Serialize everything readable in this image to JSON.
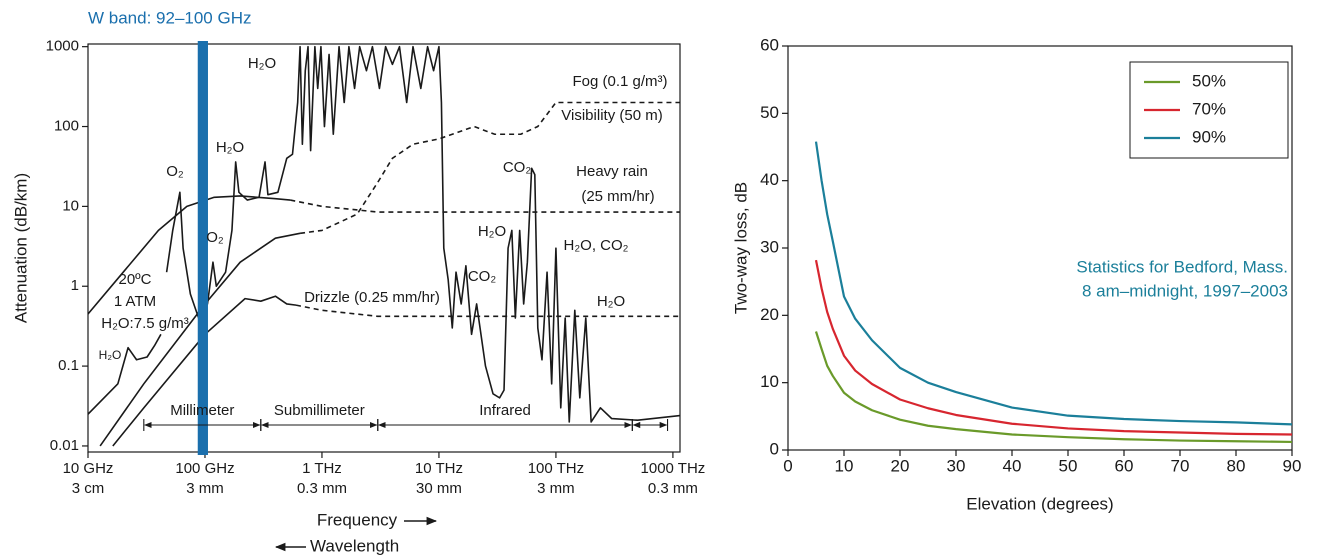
{
  "chart_data": [
    {
      "type": "line",
      "title": "W band: 92–100 GHz",
      "y_label": "Attenuation (dB/km)",
      "x_label": "Frequency",
      "x2_label": "Wavelength",
      "log_x": true,
      "log_y": true,
      "xlim": [
        10,
        1150000
      ],
      "ylim": [
        0.0084,
        1080
      ],
      "xticks": [
        {
          "value": 10,
          "label": "10 GHz"
        },
        {
          "value": 100,
          "label": "100 GHz"
        },
        {
          "value": 1000,
          "label": "1 THz"
        },
        {
          "value": 10000,
          "label": "10 THz"
        },
        {
          "value": 100000,
          "label": "100 THz"
        },
        {
          "value": 1000000,
          "label": "1000 THz"
        }
      ],
      "xtick_wavelengths": [
        "3 cm",
        "3 mm",
        "0.3 mm",
        "30 mm",
        "3 mm",
        "0.3 mm"
      ],
      "yticks": [
        0.01,
        0.1,
        1,
        10,
        100,
        1000
      ],
      "w_band": {
        "range": [
          92,
          100
        ],
        "color": "#1a6fad"
      },
      "regions": [
        {
          "label": "Millimeter",
          "range": [
            30,
            300
          ]
        },
        {
          "label": "Submillimeter",
          "range": [
            300,
            3000
          ]
        },
        {
          "label": "Infrared",
          "range": [
            3000,
            450000
          ]
        },
        {
          "range": [
            450000,
            900000
          ]
        }
      ],
      "series": [
        {
          "color": "#1a1a1a",
          "dash": false,
          "x": [
            10,
            18,
            22,
            26,
            32,
            37,
            42,
            null,
            47,
            53,
            61,
            65,
            75,
            91,
            105,
            117,
            125,
            150,
            170,
            183,
            195,
            230,
            290,
            326,
            345,
            420,
            500,
            560,
            620,
            650,
            680,
            720,
            760,
            800,
            870,
            920,
            980,
            1050,
            1150,
            1250,
            1400,
            1550,
            1700,
            1900,
            2100,
            2400,
            2700,
            3100,
            3500,
            4000,
            4600,
            5300,
            6000,
            7000,
            8000,
            9000,
            10000,
            10500,
            11000,
            12000,
            13000,
            14000,
            15500,
            17000,
            19000,
            21000,
            25000,
            29000,
            33000,
            36000,
            39000,
            42000,
            45000,
            49000,
            53000,
            57000,
            62000,
            66000,
            70000,
            76000,
            84000,
            92000,
            100000,
            110000,
            120000,
            130000,
            145000,
            160000,
            180000,
            200000,
            240000,
            300000,
            500000,
            1150000
          ],
          "values": [
            0.025,
            0.06,
            0.17,
            0.12,
            0.13,
            0.18,
            0.25,
            null,
            1.5,
            5,
            15,
            3,
            0.8,
            0.35,
            0.6,
            2,
            1,
            1.5,
            5,
            36,
            15,
            12,
            13,
            36,
            14,
            15,
            40,
            45,
            200,
            1000,
            60,
            500,
            1000,
            50,
            1000,
            300,
            1000,
            100,
            800,
            80,
            1000,
            200,
            1000,
            300,
            1000,
            500,
            1000,
            300,
            1000,
            600,
            1000,
            200,
            1000,
            300,
            1000,
            500,
            1000,
            200,
            3,
            1.2,
            0.3,
            1.5,
            0.6,
            1.8,
            0.25,
            0.6,
            0.1,
            0.045,
            0.04,
            0.05,
            3,
            5,
            0.4,
            5,
            0.6,
            2,
            30,
            25,
            0.3,
            0.12,
            1.5,
            0.06,
            3,
            0.03,
            0.4,
            0.02,
            0.5,
            0.04,
            0.4,
            0.02,
            0.03,
            0.022,
            0.021,
            0.024
          ]
        },
        {
          "color": "#1a1a1a",
          "dash": false,
          "x": [
            10,
            20,
            40,
            70,
            120,
            200,
            400,
            536
          ],
          "values": [
            0.45,
            1.5,
            5,
            10,
            13,
            13.5,
            12.5,
            12
          ]
        },
        {
          "color": "#1a1a1a",
          "dash": true,
          "x": [
            536,
            1000,
            3000,
            1150000
          ],
          "values": [
            12,
            10,
            8.5,
            8.5
          ]
        },
        {
          "color": "#1a1a1a",
          "dash": false,
          "x": [
            12.7,
            30,
            100,
            200,
            400,
            650
          ],
          "values": [
            0.01,
            0.06,
            0.6,
            2,
            4,
            4.6
          ]
        },
        {
          "color": "#1a1a1a",
          "dash": true,
          "x": [
            650,
            1000,
            2000,
            3000,
            4000,
            6000,
            10000,
            20000,
            30000,
            50000,
            70000,
            100000,
            1150000
          ],
          "values": [
            4.6,
            5,
            8,
            20,
            40,
            60,
            70,
            100,
            80,
            80,
            100,
            200,
            200
          ]
        },
        {
          "color": "#1a1a1a",
          "dash": false,
          "x": [
            16.3,
            30,
            100,
            220,
            300,
            400,
            500,
            600
          ],
          "values": [
            0.01,
            0.03,
            0.25,
            0.7,
            0.65,
            0.75,
            0.6,
            0.58
          ]
        },
        {
          "color": "#1a1a1a",
          "dash": true,
          "x": [
            600,
            1000,
            3000,
            1150000
          ],
          "values": [
            0.58,
            0.5,
            0.42,
            0.42
          ]
        }
      ],
      "annotations": [
        "H₂O",
        "O₂",
        "H₂O",
        "O₂",
        "20ºC",
        "1 ATM",
        "H₂O:7.5 g/m³",
        "H₂O",
        "CO₂",
        "H₂O",
        "CO₂",
        "H₂O, CO₂",
        "H₂O",
        "Fog (0.1 g/m³)",
        "Visibility (50 m)",
        "Heavy rain",
        "(25 mm/hr)",
        "Drizzle (0.25 mm/hr)"
      ]
    },
    {
      "type": "line",
      "y_label": "Two-way loss, dB",
      "x_label": "Elevation (degrees)",
      "xlim": [
        0,
        90
      ],
      "ylim": [
        0,
        60
      ],
      "xticks": [
        0,
        10,
        20,
        30,
        40,
        50,
        60,
        70,
        80,
        90
      ],
      "yticks": [
        0,
        10,
        20,
        30,
        40,
        50,
        60
      ],
      "legend": "upper right",
      "x": [
        5,
        6,
        7,
        8,
        10,
        12,
        15,
        20,
        25,
        30,
        40,
        50,
        60,
        70,
        80,
        90
      ],
      "series": [
        {
          "name": "50%",
          "color": "#6a9a2a",
          "values": [
            17.6,
            15,
            12.5,
            11,
            8.5,
            7.2,
            5.9,
            4.5,
            3.6,
            3.1,
            2.3,
            1.9,
            1.6,
            1.4,
            1.3,
            1.2
          ]
        },
        {
          "name": "70%",
          "color": "#d7262f",
          "values": [
            28.2,
            24,
            20.5,
            18,
            14,
            11.8,
            9.8,
            7.5,
            6.2,
            5.2,
            3.9,
            3.2,
            2.8,
            2.6,
            2.4,
            2.3
          ]
        },
        {
          "name": "90%",
          "color": "#1b7f9a",
          "values": [
            45.8,
            40,
            35,
            31,
            22.8,
            19.5,
            16.3,
            12.2,
            10,
            8.6,
            6.3,
            5.1,
            4.6,
            4.3,
            4.1,
            3.8
          ]
        }
      ],
      "annotations": [
        "Statistics for Bedford, Mass.",
        "8 am–midnight, 1997–2003"
      ],
      "annotation_color": "#1b7f9a"
    }
  ]
}
